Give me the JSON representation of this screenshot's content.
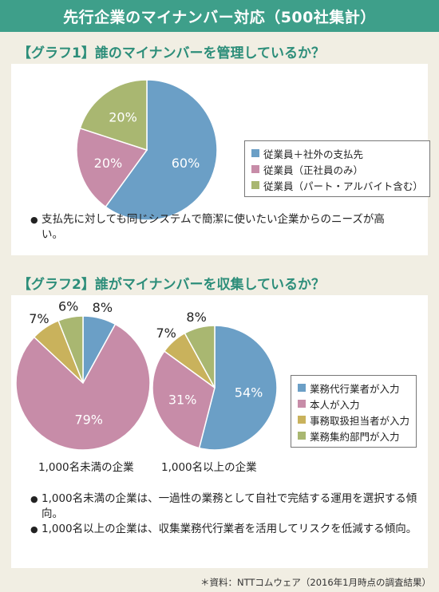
{
  "header": {
    "title": "先行企業のマイナンバー対応（500社集計）"
  },
  "colors": {
    "blue": "#6b9fc6",
    "pink": "#c78ca8",
    "green": "#a9b771",
    "yellow": "#c9b25c",
    "olive": "#a9b771",
    "header_bg": "#3e9f8a"
  },
  "graph1": {
    "title": "【グラフ1】誰のマイナンバーを管理しているか？",
    "note": "支払先に対しても同じシステムで簡潔に使いたい企業からのニーズが高い。"
  },
  "graph2": {
    "title": "【グラフ2】誰がマイナンバーを収集しているか？",
    "caption_left": "1,000名未満の企業",
    "caption_right": "1,000名以上の企業",
    "notes": [
      "1,000名未満の企業は、一過性の業務として自社で完結する運用を選択する傾向。",
      "1,000名以上の企業は、収集業務代行業者を活用してリスクを低減する傾向。"
    ]
  },
  "source": "＊資料：NTTコムウェア（2016年1月時点の調査結果）",
  "chart_data": [
    {
      "type": "pie",
      "title": "【グラフ1】誰のマイナンバーを管理しているか？",
      "labels": [
        "従業員＋社外の支払先",
        "従業員（正社員のみ）",
        "従業員（パート・アルバイト含む）"
      ],
      "values": [
        60,
        20,
        20
      ],
      "value_labels": [
        "60%",
        "20%",
        "20%"
      ],
      "colors": [
        "#6b9fc6",
        "#c78ca8",
        "#a9b771"
      ]
    },
    {
      "type": "pie",
      "title": "1,000名未満の企業",
      "labels": [
        "業務代行業者が入力",
        "本人が入力",
        "事務取扱担当者が入力",
        "業務集約部門が入力"
      ],
      "values": [
        8,
        79,
        7,
        6
      ],
      "value_labels": [
        "8%",
        "79%",
        "7%",
        "6%"
      ],
      "colors": [
        "#6b9fc6",
        "#c78ca8",
        "#c9b25c",
        "#a9b771"
      ]
    },
    {
      "type": "pie",
      "title": "1,000名以上の企業",
      "labels": [
        "業務代行業者が入力",
        "本人が入力",
        "事務取扱担当者が入力",
        "業務集約部門が入力"
      ],
      "values": [
        54,
        31,
        7,
        8
      ],
      "value_labels": [
        "54%",
        "31%",
        "7%",
        "8%"
      ],
      "colors": [
        "#6b9fc6",
        "#c78ca8",
        "#c9b25c",
        "#a9b771"
      ]
    }
  ]
}
